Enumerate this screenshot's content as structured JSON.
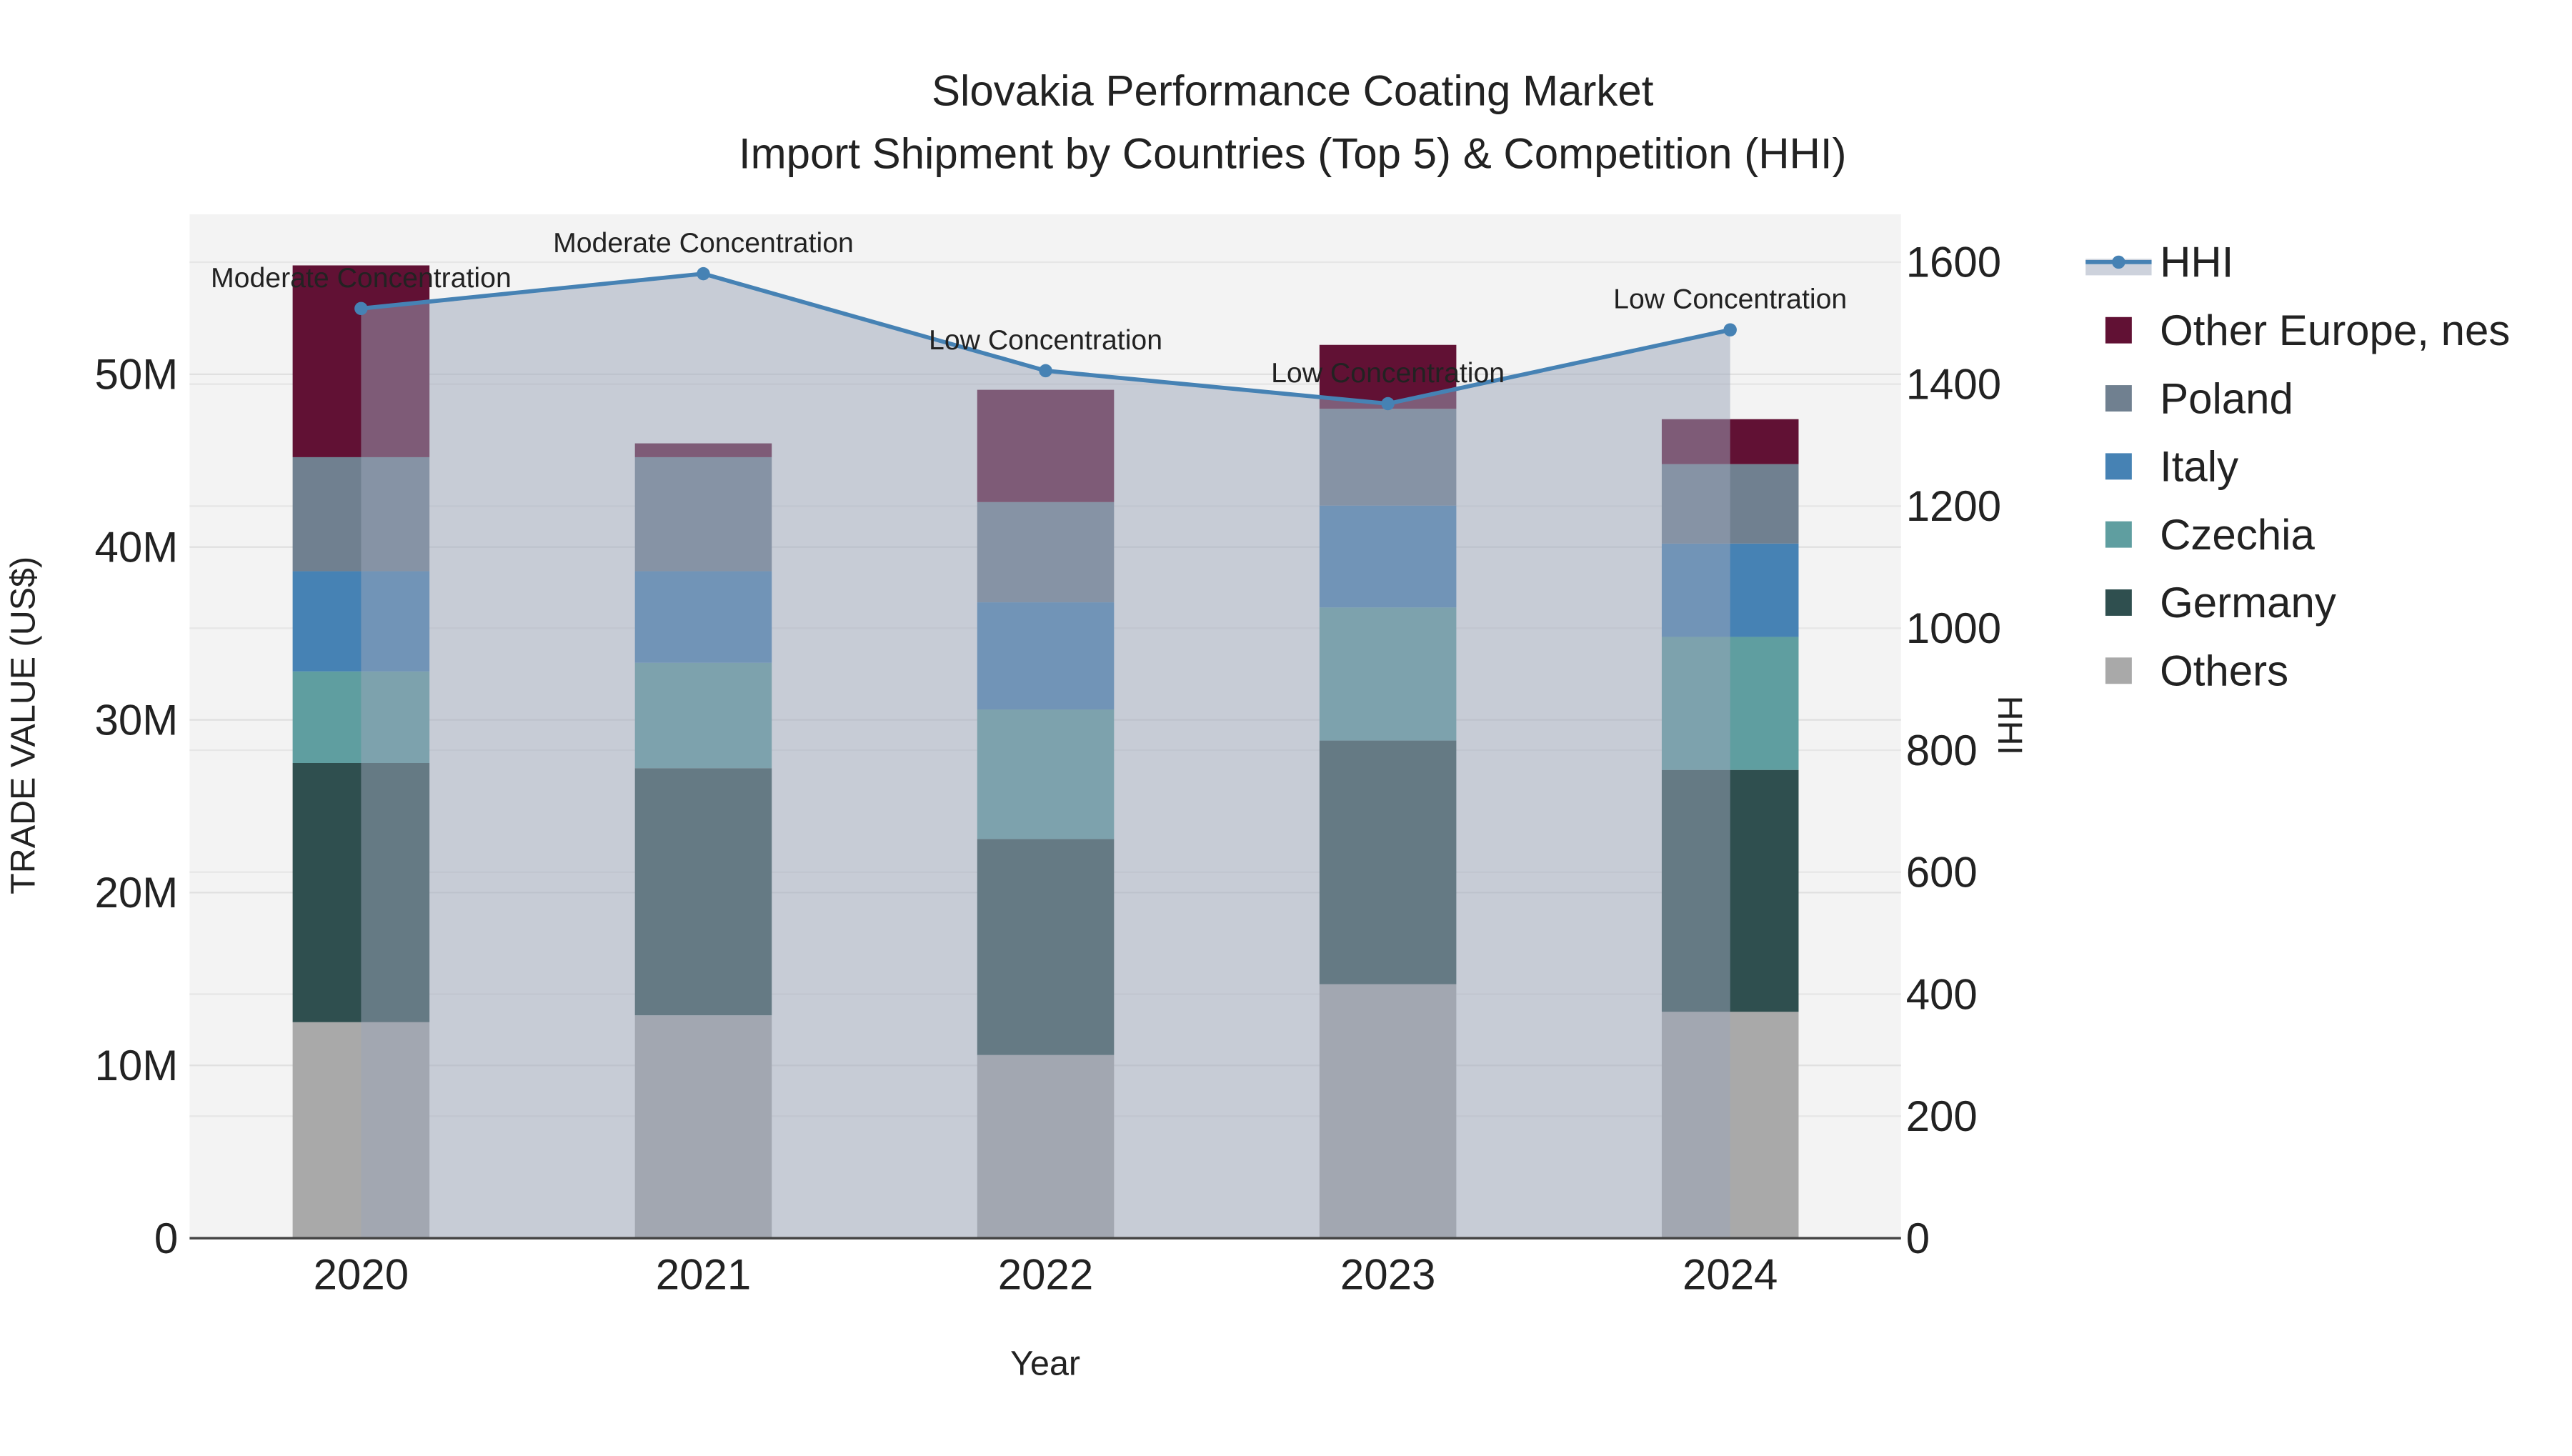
{
  "chart_data": {
    "type": "bar",
    "title": "Slovakia Performance Coating Market",
    "subtitle": "Import Shipment by Countries (Top 5) & Competition (HHI)",
    "xlabel": "Year",
    "ylabel": "TRADE VALUE (US$)",
    "y2label": "HHI",
    "categories": [
      "2020",
      "2021",
      "2022",
      "2023",
      "2024"
    ],
    "ylim": [
      0,
      59
    ],
    "y_ticks": [
      0,
      10,
      20,
      30,
      40,
      50
    ],
    "y_tick_labels": [
      "0",
      "10M",
      "20M",
      "30M",
      "40M",
      "50M"
    ],
    "y2lim": [
      0,
      1680
    ],
    "y2_ticks": [
      0,
      200,
      400,
      600,
      800,
      1000,
      1200,
      1400,
      1600
    ],
    "y2_tick_labels": [
      "0",
      "200",
      "400",
      "600",
      "800",
      "1000",
      "1200",
      "1400",
      "1600"
    ],
    "units": "US$ millions",
    "series": [
      {
        "name": "Others",
        "color": "#a9a9a9",
        "values": [
          12.5,
          12.9,
          10.6,
          14.7,
          13.1
        ]
      },
      {
        "name": "Germany",
        "color": "#2f4f4f",
        "values": [
          15.0,
          14.3,
          12.5,
          14.1,
          14.0
        ]
      },
      {
        "name": "Czechia",
        "color": "#5f9ea0",
        "values": [
          5.3,
          6.1,
          7.5,
          7.7,
          7.7
        ]
      },
      {
        "name": "Italy",
        "color": "#4682b4",
        "values": [
          5.8,
          5.3,
          6.2,
          5.9,
          5.4
        ]
      },
      {
        "name": "Poland",
        "color": "#708090",
        "values": [
          6.6,
          6.6,
          5.8,
          5.6,
          4.6
        ]
      },
      {
        "name": "Other Europe, nes",
        "color": "#611134",
        "values": [
          11.1,
          0.8,
          6.5,
          3.7,
          2.6
        ]
      }
    ],
    "hhi": {
      "name": "HHI",
      "color": "#4682b4",
      "values": [
        1524,
        1581,
        1422,
        1368,
        1489
      ],
      "annotations": [
        "Moderate Concentration",
        "Moderate Concentration",
        "Low Concentration",
        "Low Concentration",
        "Low Concentration"
      ]
    },
    "legend_order": [
      "HHI",
      "Other Europe, nes",
      "Poland",
      "Italy",
      "Czechia",
      "Germany",
      "Others"
    ],
    "legend_position": "right",
    "grid": true
  }
}
